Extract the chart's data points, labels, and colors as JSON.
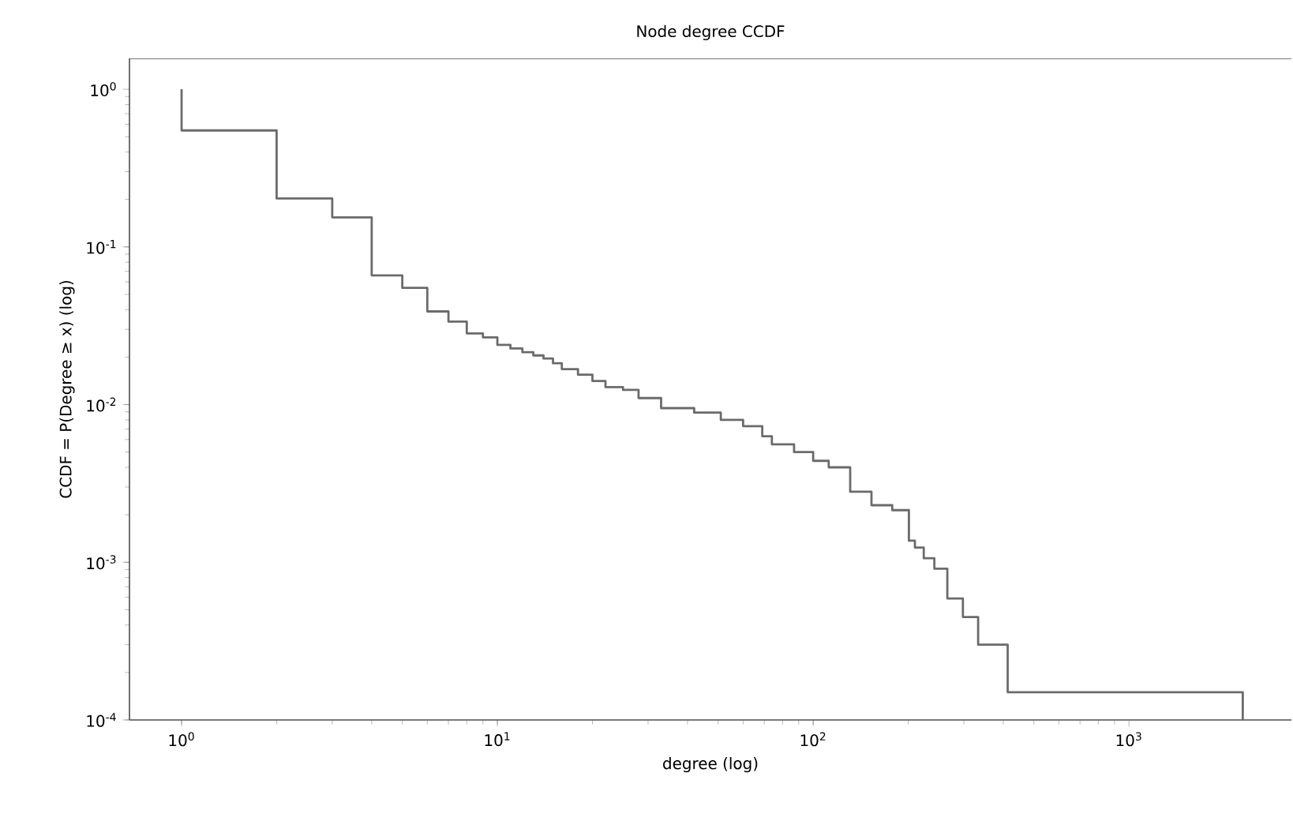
{
  "chart_data": {
    "type": "step",
    "title": "Node degree CCDF",
    "xlabel": "degree (log)",
    "ylabel": "CCDF = P(Degree ≥ x) (log)",
    "log": "xy",
    "color": "#6b6b6b",
    "xlim": [
      0.684,
      3270
    ],
    "ylim": [
      0.0001,
      1.57
    ],
    "xticks": [
      {
        "value": 1,
        "label": "10$^{0}$"
      },
      {
        "value": 10,
        "label": "10$^{1}$"
      },
      {
        "value": 100,
        "label": "10$^{2}$"
      },
      {
        "value": 1000,
        "label": "10$^{3}$"
      }
    ],
    "yticks": [
      {
        "value": 0.0001,
        "label": "10$^{-4}$"
      },
      {
        "value": 0.001,
        "label": "10$^{-3}$"
      },
      {
        "value": 0.01,
        "label": "10$^{-2}$"
      },
      {
        "value": 0.1,
        "label": "10$^{-1}$"
      },
      {
        "value": 1,
        "label": "10$^{0}$"
      }
    ],
    "x": [
      1,
      2,
      3,
      4,
      5,
      6,
      7,
      8,
      9,
      10,
      11,
      12,
      13,
      14,
      15,
      16,
      18,
      20,
      22,
      25,
      28,
      33,
      42,
      51,
      60,
      69,
      74,
      87,
      100,
      112,
      131,
      153,
      178,
      201,
      210,
      224,
      242,
      266,
      298,
      333,
      413,
      2293,
      2293
    ],
    "values": [
      1.0,
      0.548,
      0.203,
      0.154,
      0.066,
      0.055,
      0.039,
      0.0336,
      0.0283,
      0.0267,
      0.0239,
      0.0227,
      0.0215,
      0.0205,
      0.0196,
      0.0183,
      0.0168,
      0.0155,
      0.0141,
      0.0129,
      0.0124,
      0.011,
      0.0095,
      0.0089,
      0.008,
      0.0073,
      0.0063,
      0.0056,
      0.005,
      0.0044,
      0.004,
      0.0028,
      0.0023,
      0.00214,
      0.00137,
      0.00124,
      0.00106,
      0.00091,
      0.00059,
      0.00045,
      0.0003,
      0.00015,
      0.0001
    ]
  }
}
